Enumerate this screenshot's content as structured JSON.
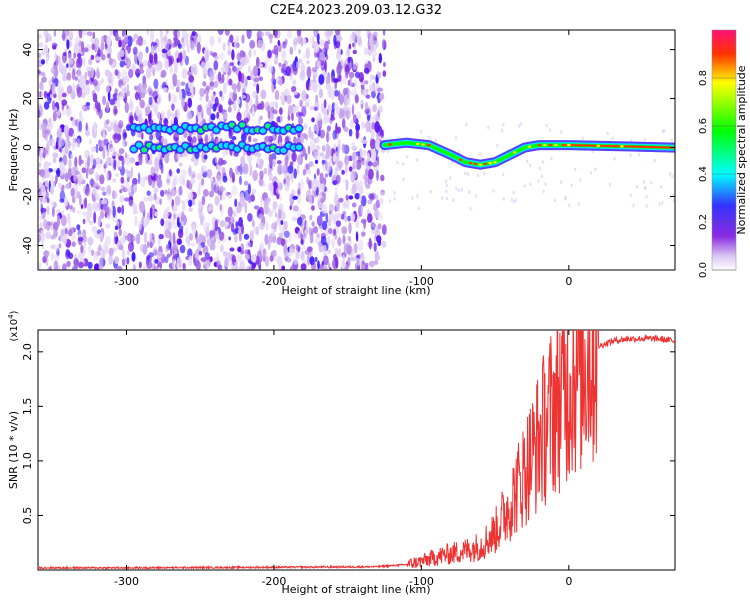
{
  "title": "C2E4.2023.209.03.12.G32",
  "chart_data": [
    {
      "type": "heatmap",
      "name": "spectrogram",
      "xlabel": "Height of straight line (km)",
      "ylabel": "Frequency (Hz)",
      "xlim": [
        -360,
        72
      ],
      "ylim": [
        -50,
        48
      ],
      "xticks": [
        -300,
        -200,
        -100,
        0
      ],
      "yticks": [
        -40,
        -20,
        0,
        20,
        40
      ],
      "noise_region": [
        -360,
        -125
      ],
      "colorbar": {
        "label": "Normalized spectral amplitude",
        "range": [
          0,
          1
        ],
        "ticks": [
          0.0,
          0.2,
          0.4,
          0.6,
          0.8
        ]
      },
      "signal_tracks": [
        {
          "name": "upper-track",
          "x": [
            -295,
            -180
          ],
          "y": 8
        },
        {
          "name": "lower-track",
          "x": [
            -295,
            -180
          ],
          "y": 0
        },
        {
          "name": "main-track",
          "points": [
            [
              -125,
              1
            ],
            [
              -110,
              2
            ],
            [
              -95,
              1
            ],
            [
              -80,
              -3
            ],
            [
              -70,
              -6
            ],
            [
              -60,
              -7
            ],
            [
              -50,
              -6
            ],
            [
              -40,
              -3
            ],
            [
              -30,
              0
            ],
            [
              -20,
              1
            ],
            [
              -5,
              1
            ],
            [
              0,
              1
            ],
            [
              72,
              0
            ]
          ]
        }
      ]
    },
    {
      "type": "line",
      "name": "snr",
      "xlabel": "Height of straight line (km)",
      "ylabel": "SNR (10 * v/v)",
      "multiplier_label": "(x10",
      "multiplier_exp": "4",
      "multiplier_close": ")",
      "xlim": [
        -360,
        72
      ],
      "ylim": [
        0,
        2.2
      ],
      "xticks": [
        -300,
        -200,
        -100,
        0
      ],
      "yticks": [
        0.5,
        1.0,
        1.5,
        2.0
      ],
      "series": [
        {
          "name": "SNR",
          "x": [
            -360,
            -300,
            -200,
            -130,
            -110,
            -100,
            -90,
            -80,
            -70,
            -60,
            -50,
            -40,
            -30,
            -20,
            -10,
            0,
            10,
            20,
            30,
            40,
            50,
            60,
            72
          ],
          "y": [
            0.02,
            0.02,
            0.025,
            0.03,
            0.05,
            0.08,
            0.12,
            0.15,
            0.18,
            0.22,
            0.35,
            0.6,
            0.9,
            1.2,
            1.5,
            1.75,
            1.95,
            2.05,
            2.1,
            2.12,
            2.12,
            2.12,
            2.1
          ]
        }
      ]
    }
  ]
}
